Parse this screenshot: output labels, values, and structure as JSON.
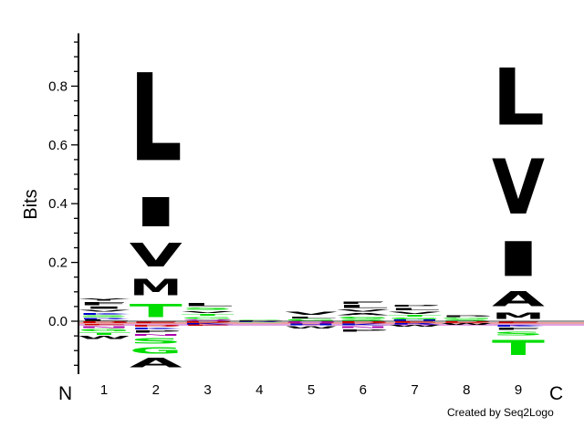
{
  "chart_data": {
    "type": "sequence-logo",
    "ylabel": "Bits",
    "ylim": [
      -0.18,
      0.98
    ],
    "yticks": [
      "0.0",
      "0.2",
      "0.4",
      "0.6",
      "0.8"
    ],
    "ytick_values": [
      0,
      0.2,
      0.4,
      0.6,
      0.8
    ],
    "minor_step": 0.05,
    "positions": [
      "1",
      "2",
      "3",
      "4",
      "5",
      "6",
      "7",
      "8",
      "9"
    ],
    "n_terminal": "N",
    "c_terminal": "C",
    "credit": "Created by Seq2Logo",
    "colors": {
      "hydrophobic": "#000000",
      "small": "#00dd00",
      "basic": "#0000cc",
      "acidic": "#cc0000",
      "amide": "#aa00aa"
    },
    "stacks": [
      {
        "position": "1",
        "positive": [
          {
            "aa": "L",
            "bits": 0.005,
            "color": "#000000"
          },
          {
            "aa": "R",
            "bits": 0.007,
            "color": "#0000cc"
          },
          {
            "aa": "S",
            "bits": 0.008,
            "color": "#00dd00"
          },
          {
            "aa": "K",
            "bits": 0.01,
            "color": "#0000cc"
          },
          {
            "aa": "V",
            "bits": 0.01,
            "color": "#000000"
          },
          {
            "aa": "I",
            "bits": 0.012,
            "color": "#000000"
          },
          {
            "aa": "F",
            "bits": 0.015,
            "color": "#000000"
          },
          {
            "aa": "Y",
            "bits": 0.012,
            "color": "#000000"
          }
        ],
        "negative": [
          {
            "aa": "D",
            "bits": 0.008,
            "color": "#cc0000"
          },
          {
            "aa": "E",
            "bits": 0.007,
            "color": "#cc0000"
          },
          {
            "aa": "N",
            "bits": 0.01,
            "color": "#aa00aa"
          },
          {
            "aa": "G",
            "bits": 0.012,
            "color": "#00dd00"
          },
          {
            "aa": "T",
            "bits": 0.012,
            "color": "#00dd00"
          },
          {
            "aa": "W",
            "bits": 0.015,
            "color": "#000000"
          }
        ]
      },
      {
        "position": "2",
        "positive": [
          {
            "aa": "T",
            "bits": 0.07,
            "color": "#00dd00"
          },
          {
            "aa": "M",
            "bits": 0.09,
            "color": "#000000"
          },
          {
            "aa": "V",
            "bits": 0.13,
            "color": "#000000"
          },
          {
            "aa": "I",
            "bits": 0.16,
            "color": "#000000"
          },
          {
            "aa": "L",
            "bits": 0.48,
            "color": "#000000"
          }
        ],
        "negative": [
          {
            "aa": "E",
            "bits": 0.01,
            "color": "#cc0000"
          },
          {
            "aa": "D",
            "bits": 0.01,
            "color": "#cc0000"
          },
          {
            "aa": "K",
            "bits": 0.01,
            "color": "#0000cc"
          },
          {
            "aa": "P",
            "bits": 0.012,
            "color": "#000000"
          },
          {
            "aa": "N",
            "bits": 0.01,
            "color": "#aa00aa"
          },
          {
            "aa": "S",
            "bits": 0.03,
            "color": "#00dd00"
          },
          {
            "aa": "G",
            "bits": 0.035,
            "color": "#00dd00"
          },
          {
            "aa": "A",
            "bits": 0.05,
            "color": "#000000"
          }
        ]
      },
      {
        "position": "3",
        "positive": [
          {
            "aa": "Q",
            "bits": 0.006,
            "color": "#aa00aa"
          },
          {
            "aa": "G",
            "bits": 0.01,
            "color": "#00dd00"
          },
          {
            "aa": "T",
            "bits": 0.01,
            "color": "#00dd00"
          },
          {
            "aa": "V",
            "bits": 0.01,
            "color": "#000000"
          },
          {
            "aa": "S",
            "bits": 0.012,
            "color": "#00dd00"
          },
          {
            "aa": "L",
            "bits": 0.015,
            "color": "#000000"
          }
        ],
        "negative": [
          {
            "aa": "D",
            "bits": 0.006,
            "color": "#cc0000"
          },
          {
            "aa": "K",
            "bits": 0.006,
            "color": "#0000cc"
          },
          {
            "aa": "E",
            "bits": 0.005,
            "color": "#cc0000"
          }
        ]
      },
      {
        "position": "4",
        "positive": [
          {
            "aa": "P",
            "bits": 0.004,
            "color": "#000000"
          },
          {
            "aa": "S",
            "bits": 0.003,
            "color": "#00dd00"
          }
        ],
        "negative": [
          {
            "aa": "R",
            "bits": 0.004,
            "color": "#0000cc"
          },
          {
            "aa": "C",
            "bits": 0.003,
            "color": "#00dd00"
          }
        ]
      },
      {
        "position": "5",
        "positive": [
          {
            "aa": "G",
            "bits": 0.008,
            "color": "#00dd00"
          },
          {
            "aa": "L",
            "bits": 0.01,
            "color": "#000000"
          },
          {
            "aa": "V",
            "bits": 0.015,
            "color": "#000000"
          }
        ],
        "negative": [
          {
            "aa": "Q",
            "bits": 0.008,
            "color": "#aa00aa"
          },
          {
            "aa": "H",
            "bits": 0.008,
            "color": "#0000cc"
          },
          {
            "aa": "W",
            "bits": 0.012,
            "color": "#000000"
          }
        ]
      },
      {
        "position": "6",
        "positive": [
          {
            "aa": "S",
            "bits": 0.008,
            "color": "#00dd00"
          },
          {
            "aa": "G",
            "bits": 0.01,
            "color": "#00dd00"
          },
          {
            "aa": "A",
            "bits": 0.012,
            "color": "#000000"
          },
          {
            "aa": "V",
            "bits": 0.012,
            "color": "#000000"
          },
          {
            "aa": "L",
            "bits": 0.015,
            "color": "#000000"
          },
          {
            "aa": "F",
            "bits": 0.012,
            "color": "#000000"
          }
        ],
        "negative": [
          {
            "aa": "D",
            "bits": 0.008,
            "color": "#cc0000"
          },
          {
            "aa": "K",
            "bits": 0.008,
            "color": "#0000cc"
          },
          {
            "aa": "N",
            "bits": 0.01,
            "color": "#aa00aa"
          },
          {
            "aa": "P",
            "bits": 0.012,
            "color": "#000000"
          }
        ]
      },
      {
        "position": "7",
        "positive": [
          {
            "aa": "H",
            "bits": 0.005,
            "color": "#0000cc"
          },
          {
            "aa": "G",
            "bits": 0.008,
            "color": "#00dd00"
          },
          {
            "aa": "T",
            "bits": 0.01,
            "color": "#00dd00"
          },
          {
            "aa": "V",
            "bits": 0.012,
            "color": "#000000"
          },
          {
            "aa": "L",
            "bits": 0.012,
            "color": "#000000"
          },
          {
            "aa": "P",
            "bits": 0.01,
            "color": "#000000"
          }
        ],
        "negative": [
          {
            "aa": "E",
            "bits": 0.006,
            "color": "#cc0000"
          },
          {
            "aa": "R",
            "bits": 0.007,
            "color": "#0000cc"
          },
          {
            "aa": "W",
            "bits": 0.008,
            "color": "#000000"
          }
        ]
      },
      {
        "position": "8",
        "positive": [
          {
            "aa": "S",
            "bits": 0.006,
            "color": "#00dd00"
          },
          {
            "aa": "G",
            "bits": 0.006,
            "color": "#00dd00"
          },
          {
            "aa": "P",
            "bits": 0.008,
            "color": "#000000"
          }
        ],
        "negative": [
          {
            "aa": "D",
            "bits": 0.006,
            "color": "#cc0000"
          },
          {
            "aa": "W",
            "bits": 0.008,
            "color": "#000000"
          }
        ]
      },
      {
        "position": "9",
        "positive": [
          {
            "aa": "M",
            "bits": 0.035,
            "color": "#000000"
          },
          {
            "aa": "A",
            "bits": 0.08,
            "color": "#000000"
          },
          {
            "aa": "I",
            "bits": 0.19,
            "color": "#000000"
          },
          {
            "aa": "V",
            "bits": 0.3,
            "color": "#000000"
          },
          {
            "aa": "L",
            "bits": 0.31,
            "color": "#000000"
          }
        ],
        "negative": [
          {
            "aa": "E",
            "bits": 0.01,
            "color": "#cc0000"
          },
          {
            "aa": "K",
            "bits": 0.01,
            "color": "#0000cc"
          },
          {
            "aa": "F",
            "bits": 0.012,
            "color": "#000000"
          },
          {
            "aa": "S",
            "bits": 0.02,
            "color": "#00dd00"
          },
          {
            "aa": "T",
            "bits": 0.08,
            "color": "#00dd00"
          }
        ]
      }
    ]
  }
}
